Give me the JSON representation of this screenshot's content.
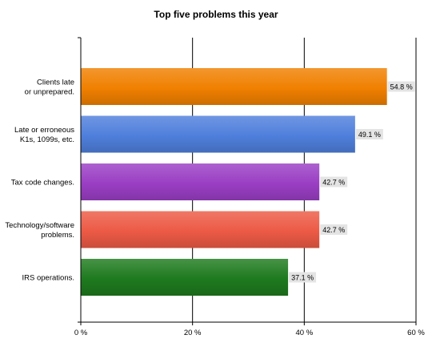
{
  "chart_data": {
    "type": "bar",
    "orientation": "horizontal",
    "title": "Top five problems this year",
    "categories": [
      [
        "Clients late",
        "or unprepared."
      ],
      [
        "Late or erroneous",
        "K1s, 1099s, etc."
      ],
      [
        "Tax code changes."
      ],
      [
        "Technology/software",
        "problems."
      ],
      [
        "IRS operations."
      ]
    ],
    "values": [
      54.8,
      49.1,
      42.7,
      42.7,
      37.1
    ],
    "value_labels": [
      "54.8 %",
      "49.1 %",
      "42.7 %",
      "42.7 %",
      "37.1 %"
    ],
    "colors": [
      "#f08000",
      "#4f7fdc",
      "#9a3ec4",
      "#ec5a45",
      "#1e7a1e"
    ],
    "xlim": [
      0,
      60
    ],
    "x_ticks": [
      0,
      20,
      40,
      60
    ],
    "x_tick_labels": [
      "0 %",
      "20 %",
      "40 %",
      "60 %"
    ],
    "grid": "vertical",
    "xlabel": "",
    "ylabel": ""
  }
}
